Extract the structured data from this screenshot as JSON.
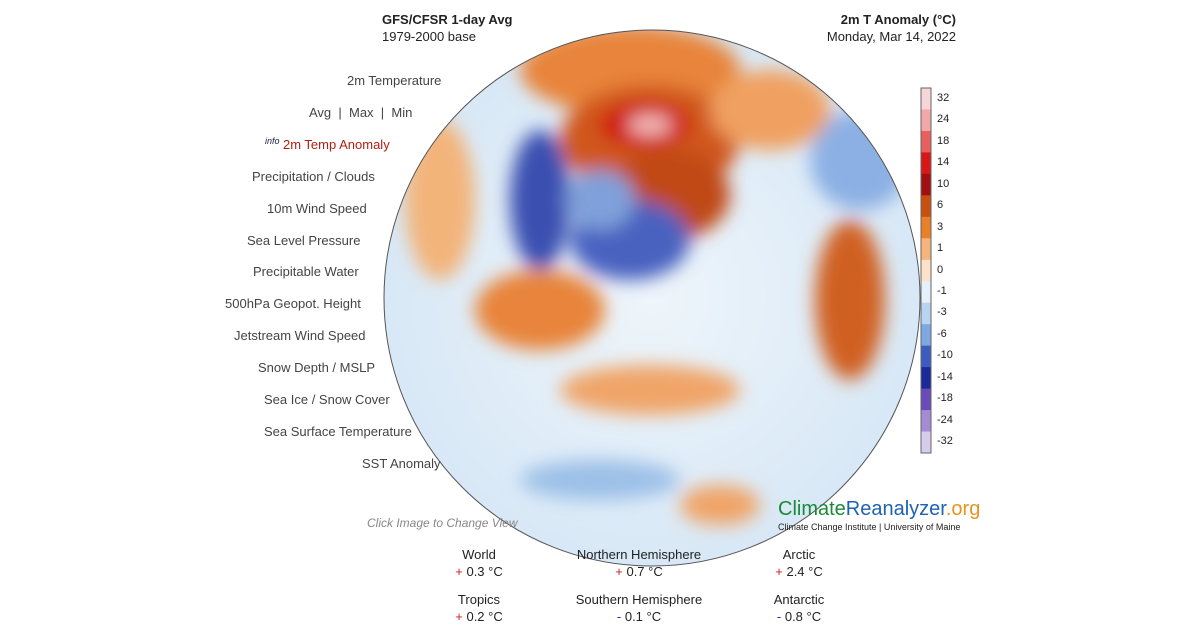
{
  "header": {
    "title": "GFS/CFSR 1-day Avg",
    "subtitle": "1979-2000 base",
    "variable": "2m T Anomaly (°C)",
    "date": "Monday, Mar 14, 2022"
  },
  "menu": {
    "items": [
      "2m Temperature",
      "Avg  |  Max  |  Min",
      "2m Temp Anomaly",
      "Precipitation / Clouds",
      "10m Wind Speed",
      "Sea Level Pressure",
      "Precipitable Water",
      "500hPa Geopot. Height",
      "Jetstream Wind Speed",
      "Snow Depth / MSLP",
      "Sea Ice / Snow Cover",
      "Sea Surface Temperature",
      "SST Anomaly"
    ],
    "info": "info",
    "hint": "Click Image to Change View"
  },
  "colorbar": {
    "labels": [
      "32",
      "24",
      "18",
      "14",
      "10",
      "6",
      "3",
      "1",
      "0",
      "-1",
      "-3",
      "-6",
      "-10",
      "-14",
      "-18",
      "-24",
      "-32"
    ]
  },
  "logo": {
    "part1": "Climate",
    "part2": "Reanalyzer",
    ".org": ".org",
    "credit": "Climate Change Institute | University of Maine"
  },
  "stats": [
    {
      "region": "World",
      "sign": "+",
      "value": "0.3 °C"
    },
    {
      "region": "Northern Hemisphere",
      "sign": "+",
      "value": "0.7 °C"
    },
    {
      "region": "Arctic",
      "sign": "+",
      "value": "2.4 °C"
    },
    {
      "region": "Tropics",
      "sign": "+",
      "value": "0.2 °C"
    },
    {
      "region": "Southern Hemisphere",
      "sign": "-",
      "value": "0.1 °C"
    },
    {
      "region": "Antarctic",
      "sign": "-",
      "value": "0.8 °C"
    }
  ]
}
